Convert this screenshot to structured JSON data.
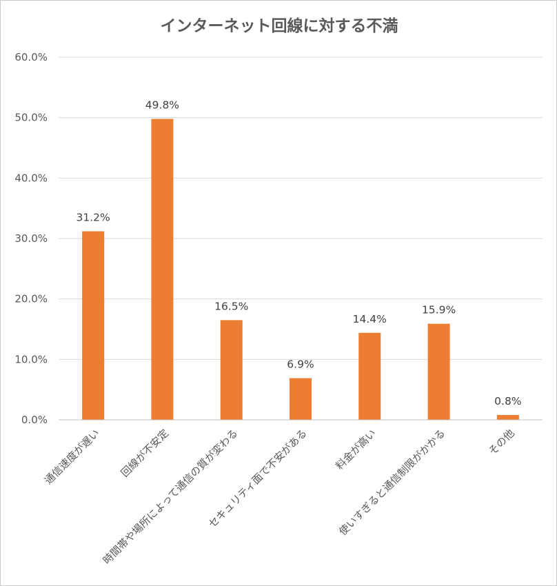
{
  "chart_data": {
    "type": "bar",
    "title": "インターネット回線に対する不満",
    "categories": [
      "通信速度が遅い",
      "回線が不安定",
      "時間帯や場所によって通信の質が変わる",
      "セキュリティ面で不安がある",
      "料金が高い",
      "使いすぎると通信制限がかかる",
      "その他"
    ],
    "values": [
      31.2,
      49.8,
      16.5,
      6.9,
      14.4,
      15.9,
      0.8
    ],
    "data_labels": [
      "31.2%",
      "49.8%",
      "16.5%",
      "6.9%",
      "14.4%",
      "15.9%",
      "0.8%"
    ],
    "y_ticks": [
      "0.0%",
      "10.0%",
      "20.0%",
      "30.0%",
      "40.0%",
      "50.0%",
      "60.0%"
    ],
    "ylim": [
      0,
      60
    ],
    "xlabel": "",
    "ylabel": "",
    "grid": true,
    "legend": "none",
    "bar_color": "#ED7D31"
  }
}
